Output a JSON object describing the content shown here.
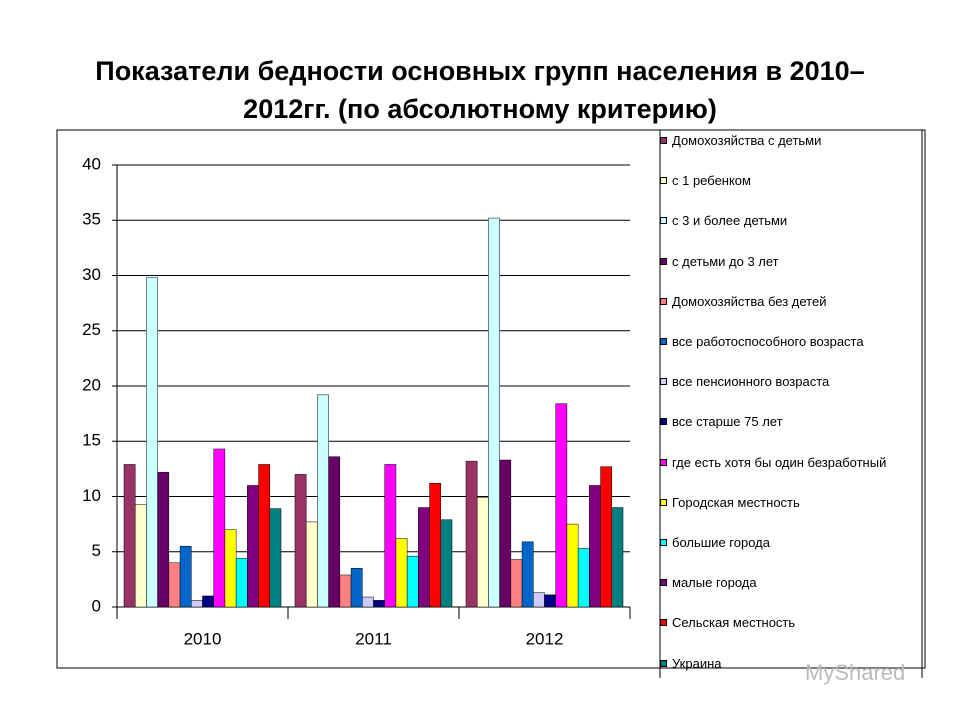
{
  "chart_data": {
    "type": "bar",
    "title": "Показатели бедности основных групп населения в 2010–2012гг. (по абсолютному критерию)",
    "categories": [
      "2010",
      "2011",
      "2012"
    ],
    "ylim": [
      0,
      40
    ],
    "yticks": [
      0,
      5,
      10,
      15,
      20,
      25,
      30,
      35,
      40
    ],
    "grid": true,
    "series": [
      {
        "name": "Домохозяйства с детьми",
        "color": "#993366",
        "values": [
          12.9,
          12.0,
          13.2
        ]
      },
      {
        "name": "с 1 ребенком",
        "color": "#FFFFCC",
        "values": [
          9.3,
          7.7,
          9.9
        ]
      },
      {
        "name": "с 3 и более детьми",
        "color": "#CCFFFF",
        "values": [
          29.8,
          19.2,
          35.2
        ]
      },
      {
        "name": "с детьми до 3 лет",
        "color": "#660066",
        "values": [
          12.2,
          13.6,
          13.3
        ]
      },
      {
        "name": "Домохозяйства без детей",
        "color": "#FF8080",
        "values": [
          4.0,
          2.9,
          4.3
        ]
      },
      {
        "name": "все работоспособного возраста",
        "color": "#0066CC",
        "values": [
          5.5,
          3.5,
          5.9
        ]
      },
      {
        "name": "все пенсионного возраста",
        "color": "#CCCCFF",
        "values": [
          0.6,
          0.9,
          1.3
        ]
      },
      {
        "name": "все старше 75 лет",
        "color": "#000080",
        "values": [
          1.0,
          0.6,
          1.1
        ]
      },
      {
        "name": "где есть хотя бы один безработный",
        "color": "#FF00FF",
        "values": [
          14.3,
          12.9,
          18.4
        ]
      },
      {
        "name": "Городская местность",
        "color": "#FFFF00",
        "values": [
          7.0,
          6.2,
          7.5
        ]
      },
      {
        "name": "большие города",
        "color": "#00FFFF",
        "values": [
          4.4,
          4.6,
          5.3
        ]
      },
      {
        "name": "малые города",
        "color": "#800080",
        "values": [
          11.0,
          9.0,
          11.0
        ]
      },
      {
        "name": "Сельская местность",
        "color": "#FF0000",
        "values": [
          12.9,
          11.2,
          12.7
        ]
      },
      {
        "name": "Украина",
        "color": "#008080",
        "values": [
          8.9,
          7.9,
          9.0
        ]
      }
    ]
  },
  "watermark": "MyShared"
}
